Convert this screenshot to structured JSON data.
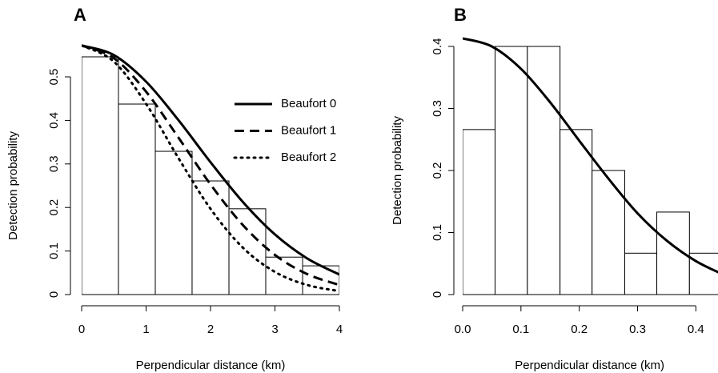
{
  "chart_data": [
    {
      "type": "histogram",
      "label": "A",
      "xlabel": "Perpendicular distance (km)",
      "ylabel": "Detection  probability",
      "bins": [
        0,
        0.571,
        1.143,
        1.714,
        2.286,
        2.857,
        3.429,
        4
      ],
      "values": [
        0.546,
        0.4375,
        0.329,
        0.261,
        0.197,
        0.086,
        0.066
      ],
      "bar_color": "#ffffff",
      "xlim": [
        0,
        4
      ],
      "ylim": [
        0,
        0.58
      ],
      "xticks": [
        0,
        1,
        2,
        3,
        4
      ],
      "yticks": [
        0,
        0.1,
        0.2,
        0.3,
        0.4,
        0.5
      ],
      "legend": "top-right",
      "series": [
        {
          "name": "Beaufort 0",
          "color": "#000000",
          "dash": "solid",
          "x": [
            0,
            0.5,
            1,
            1.5,
            2,
            2.5,
            3,
            3.5,
            4
          ],
          "values": [
            0.572,
            0.55,
            0.489,
            0.401,
            0.304,
            0.213,
            0.138,
            0.083,
            0.046
          ]
        },
        {
          "name": "Beaufort 1",
          "color": "#000000",
          "dash": "dashed",
          "x": [
            0,
            0.5,
            1,
            1.5,
            2,
            2.5,
            3,
            3.5,
            4
          ],
          "values": [
            0.572,
            0.543,
            0.466,
            0.361,
            0.253,
            0.16,
            0.091,
            0.047,
            0.022
          ]
        },
        {
          "name": "Beaufort 2",
          "color": "#000000",
          "dash": "dotted",
          "x": [
            0,
            0.5,
            1,
            1.5,
            2,
            2.5,
            3,
            3.5,
            4
          ],
          "values": [
            0.572,
            0.535,
            0.438,
            0.314,
            0.197,
            0.108,
            0.052,
            0.022,
            0.008
          ]
        }
      ]
    },
    {
      "type": "histogram",
      "label": "B",
      "xlabel": "Perpendicular distance (km)",
      "ylabel": "Detection  probability",
      "bins": [
        0,
        0.0556,
        0.111,
        0.167,
        0.222,
        0.278,
        0.333,
        0.389,
        0.444
      ],
      "values": [
        0.266,
        0.4,
        0.4,
        0.266,
        0.2,
        0.0667,
        0.133,
        0.0667
      ],
      "bar_color": "#ffffff",
      "xlim": [
        0,
        0.438
      ],
      "ylim": [
        0,
        0.42
      ],
      "xticks": [
        {
          "value": 0,
          "label": "0.0"
        },
        0.1,
        0.2,
        0.3,
        0.4
      ],
      "yticks": [
        0,
        0.1,
        0.2,
        0.3,
        0.4
      ],
      "series": [
        {
          "color": "#000000",
          "dash": "solid",
          "x": [
            0,
            0.05,
            0.1,
            0.15,
            0.2,
            0.25,
            0.3,
            0.35,
            0.4,
            0.45
          ],
          "values": [
            0.413,
            0.4,
            0.364,
            0.31,
            0.248,
            0.187,
            0.131,
            0.087,
            0.054,
            0.031
          ]
        }
      ]
    }
  ]
}
